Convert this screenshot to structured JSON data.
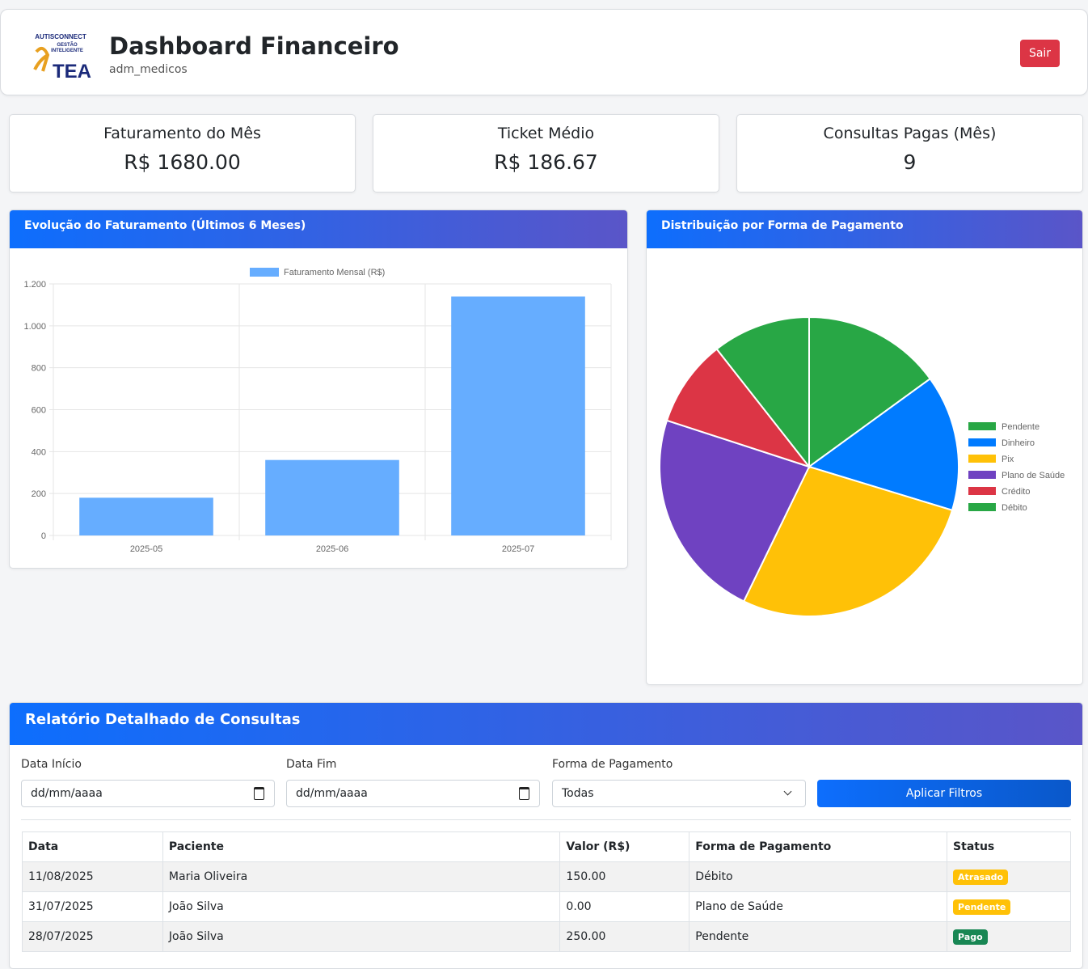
{
  "header": {
    "logo": {
      "brand": "AUTISCONNECT",
      "tagline_1": "GESTÃO",
      "tagline_2": "INTELIGENTE",
      "mark": "TEA"
    },
    "title": "Dashboard Financeiro",
    "user": "adm_medicos",
    "logout": "Sair"
  },
  "summary_cards": [
    {
      "label": "Faturamento do Mês",
      "value": "R$ 1680.00"
    },
    {
      "label": "Ticket Médio",
      "value": "R$ 186.67"
    },
    {
      "label": "Consultas Pagas (Mês)",
      "value": "9"
    }
  ],
  "chart_data": [
    {
      "type": "bar",
      "title": "Evolução do Faturamento (Últimos 6 Meses)",
      "categories": [
        "2025-05",
        "2025-06",
        "2025-07"
      ],
      "series": [
        {
          "name": "Faturamento Mensal (R$)",
          "color": "#66adff",
          "values": [
            180,
            360,
            1140
          ]
        }
      ],
      "ylim": [
        0,
        1200
      ],
      "yticks": [
        0,
        200,
        400,
        600,
        800,
        {
          "value": 1000,
          "label": "1.000"
        },
        {
          "value": 1200,
          "label": "1.200"
        }
      ],
      "grid": true
    },
    {
      "type": "pie",
      "title": "Distribuição por Forma de Pagamento",
      "categories": [
        "Pendente",
        "Dinheiro",
        "Pix",
        "Plano de Saúde",
        "Crédito",
        "Débito"
      ],
      "colors": [
        "#28a745",
        "#007bff",
        "#ffc107",
        "#6f42c1",
        "#dc3545",
        "#28a745"
      ],
      "values": [
        15,
        14.7,
        27.5,
        22.8,
        9.4,
        10.6
      ],
      "legend": "right"
    }
  ],
  "report": {
    "title": "Relatório Detalhado de Consultas",
    "filters": {
      "start": {
        "label": "Data Início",
        "placeholder": "dd/mm/aaaa"
      },
      "end": {
        "label": "Data Fim",
        "placeholder": "dd/mm/aaaa"
      },
      "payment": {
        "label": "Forma de Pagamento",
        "selected": "Todas"
      },
      "apply": "Aplicar Filtros"
    },
    "table": {
      "columns": [
        "Data",
        "Paciente",
        "Valor (R$)",
        "Forma de Pagamento",
        "Status"
      ],
      "rows": [
        [
          "11/08/2025",
          "Maria Oliveira",
          "150.00",
          "Débito",
          "Atrasado"
        ],
        [
          "31/07/2025",
          "João Silva",
          "0.00",
          "Plano de Saúde",
          "Pendente"
        ],
        [
          "28/07/2025",
          "João Silva",
          "250.00",
          "Pendente",
          "Pago"
        ]
      ]
    }
  }
}
